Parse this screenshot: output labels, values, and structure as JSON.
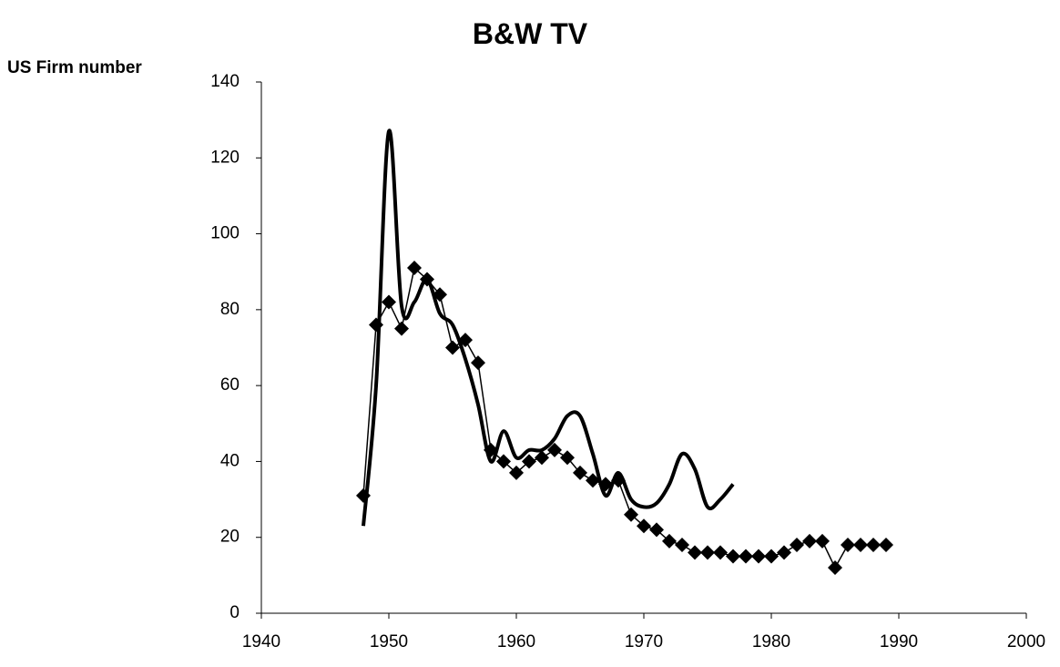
{
  "chart_data": {
    "type": "line",
    "title": "B&W TV",
    "y_label": "US Firm number",
    "xlim": [
      1940,
      2000
    ],
    "xticks": [
      1940,
      1950,
      1960,
      1970,
      1980,
      1990,
      2000
    ],
    "ylim": [
      0,
      140
    ],
    "yticks": [
      0,
      20,
      40,
      60,
      80,
      100,
      120,
      140
    ],
    "grid": false,
    "series": [
      {
        "color": "#000000",
        "marker": "diamond",
        "smooth": false,
        "x": [
          1948,
          1949,
          1950,
          1951,
          1952,
          1953,
          1954,
          1955,
          1956,
          1957,
          1958,
          1959,
          1960,
          1961,
          1962,
          1963,
          1964,
          1965,
          1966,
          1967,
          1968,
          1969,
          1970,
          1971,
          1972,
          1973,
          1974,
          1975,
          1976,
          1977,
          1978,
          1979,
          1980,
          1981,
          1982,
          1983,
          1984,
          1985,
          1986,
          1987,
          1988,
          1989
        ],
        "values": [
          31,
          76,
          82,
          75,
          91,
          88,
          84,
          70,
          72,
          66,
          43,
          40,
          37,
          40,
          41,
          43,
          41,
          37,
          35,
          34,
          35,
          26,
          23,
          22,
          19,
          18,
          16,
          16,
          16,
          15,
          15,
          15,
          15,
          16,
          18,
          19,
          19,
          12,
          18,
          18,
          18,
          18
        ]
      },
      {
        "color": "#000000",
        "smooth": true,
        "x": [
          1948,
          1949,
          1950,
          1951,
          1952,
          1953,
          1954,
          1955,
          1956,
          1957,
          1958,
          1959,
          1960,
          1961,
          1962,
          1963,
          1964,
          1965,
          1966,
          1967,
          1968,
          1969,
          1970,
          1971,
          1972,
          1973,
          1974,
          1975,
          1976,
          1977
        ],
        "values": [
          23,
          60,
          127,
          81,
          82,
          88,
          79,
          76,
          67,
          55,
          40,
          48,
          41,
          43,
          43,
          46,
          52,
          52,
          42,
          31,
          37,
          30,
          28,
          29,
          34,
          42,
          38,
          28,
          30,
          34
        ]
      }
    ]
  }
}
